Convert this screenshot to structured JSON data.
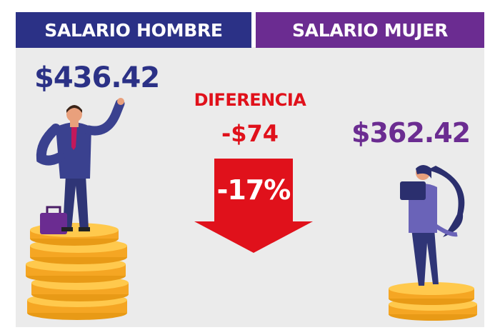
{
  "headers": {
    "men": "SALARIO HOMBRE",
    "women": "SALARIO MUJER"
  },
  "salaries": {
    "men": "$436.42",
    "women": "$362.42"
  },
  "difference": {
    "label": "DIFERENCIA",
    "value": "-$74",
    "percent": "-17%"
  },
  "colors": {
    "men": "#2b3186",
    "women": "#6b2c91",
    "accent": "#e0111b",
    "coin": "#f5a623",
    "background": "#ebebeb"
  }
}
